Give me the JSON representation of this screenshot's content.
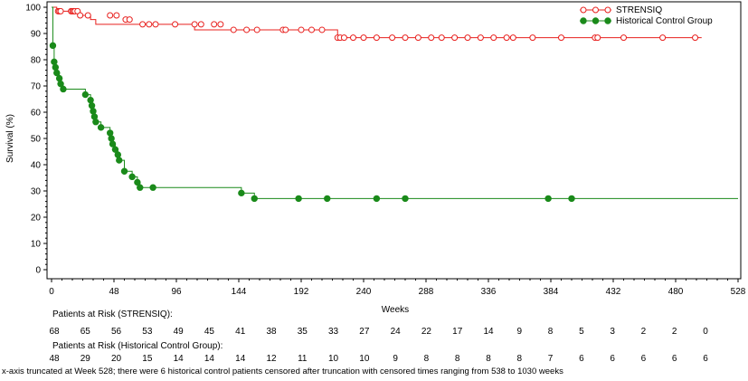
{
  "colors": {
    "strensiq": "#e8201e",
    "control": "#1a8a1a",
    "axis": "#000000"
  },
  "chart_data": {
    "type": "line",
    "xlabel": "Weeks",
    "ylabel": "Survival (%)",
    "xlim": [
      0,
      528
    ],
    "ylim": [
      0,
      100
    ],
    "xticks": [
      0,
      48,
      96,
      144,
      192,
      240,
      288,
      336,
      384,
      432,
      480,
      528
    ],
    "yticks": [
      0,
      10,
      20,
      30,
      40,
      50,
      60,
      70,
      80,
      90,
      100
    ],
    "xtick_labels": [
      "0",
      "48",
      "96",
      "144",
      "192",
      "240",
      "288",
      "336",
      "384",
      "432",
      "480",
      "528"
    ],
    "ytick_labels": [
      "0",
      "10",
      "20",
      "30",
      "40",
      "50",
      "60",
      "70",
      "80",
      "90",
      "100"
    ],
    "grid": false,
    "legend_position": "top-right",
    "series": [
      {
        "name": "STRENSIQ",
        "marker": "open-circle",
        "step": [
          [
            0,
            100
          ],
          [
            4,
            98.5
          ],
          [
            22,
            96.9
          ],
          [
            30,
            95.3
          ],
          [
            34,
            93.5
          ],
          [
            110,
            91.4
          ],
          [
            220,
            88.4
          ],
          [
            500,
            88.4
          ]
        ],
        "censored": [
          [
            5,
            98.5
          ],
          [
            6,
            98.5
          ],
          [
            7,
            98.5
          ],
          [
            15,
            98.5
          ],
          [
            16,
            98.5
          ],
          [
            17,
            98.5
          ],
          [
            18,
            98.5
          ],
          [
            20,
            98.5
          ],
          [
            22,
            96.9
          ],
          [
            28,
            96.9
          ],
          [
            45,
            96.9
          ],
          [
            50,
            96.9
          ],
          [
            57,
            95.3
          ],
          [
            60,
            95.3
          ],
          [
            70,
            93.5
          ],
          [
            75,
            93.5
          ],
          [
            80,
            93.5
          ],
          [
            95,
            93.5
          ],
          [
            110,
            93.5
          ],
          [
            115,
            93.5
          ],
          [
            125,
            93.5
          ],
          [
            130,
            93.5
          ],
          [
            140,
            91.4
          ],
          [
            150,
            91.4
          ],
          [
            158,
            91.4
          ],
          [
            178,
            91.4
          ],
          [
            180,
            91.4
          ],
          [
            192,
            91.4
          ],
          [
            200,
            91.4
          ],
          [
            208,
            91.4
          ],
          [
            220,
            88.4
          ],
          [
            222,
            88.4
          ],
          [
            225,
            88.4
          ],
          [
            232,
            88.4
          ],
          [
            240,
            88.4
          ],
          [
            250,
            88.4
          ],
          [
            262,
            88.4
          ],
          [
            272,
            88.4
          ],
          [
            282,
            88.4
          ],
          [
            292,
            88.4
          ],
          [
            300,
            88.4
          ],
          [
            310,
            88.4
          ],
          [
            320,
            88.4
          ],
          [
            330,
            88.4
          ],
          [
            340,
            88.4
          ],
          [
            350,
            88.4
          ],
          [
            355,
            88.4
          ],
          [
            370,
            88.4
          ],
          [
            392,
            88.4
          ],
          [
            418,
            88.4
          ],
          [
            420,
            88.4
          ],
          [
            440,
            88.4
          ],
          [
            470,
            88.4
          ],
          [
            495,
            88.4
          ]
        ],
        "risk_counts": [
          68,
          65,
          56,
          53,
          49,
          45,
          41,
          38,
          35,
          33,
          27,
          24,
          22,
          17,
          14,
          9,
          8,
          5,
          3,
          2,
          2,
          0
        ]
      },
      {
        "name": "Historical Control Group",
        "marker": "filled-circle",
        "step": [
          [
            0,
            100
          ],
          [
            1,
            85.4
          ],
          [
            2,
            79.2
          ],
          [
            3,
            77.1
          ],
          [
            4,
            75
          ],
          [
            6,
            72.9
          ],
          [
            7,
            70.8
          ],
          [
            9,
            68.8
          ],
          [
            26,
            66.7
          ],
          [
            30,
            64.6
          ],
          [
            31,
            62.5
          ],
          [
            32,
            60.4
          ],
          [
            33,
            58.3
          ],
          [
            34,
            56.3
          ],
          [
            38,
            54.2
          ],
          [
            45,
            52.1
          ],
          [
            46,
            50
          ],
          [
            47,
            47.9
          ],
          [
            49,
            45.8
          ],
          [
            51,
            43.8
          ],
          [
            52,
            41.7
          ],
          [
            56,
            37.5
          ],
          [
            62,
            35.4
          ],
          [
            66,
            33.3
          ],
          [
            68,
            31.3
          ],
          [
            146,
            29.2
          ],
          [
            156,
            27.1
          ],
          [
            528,
            27.1
          ]
        ],
        "events": [
          [
            1,
            85.4
          ],
          [
            2,
            79.2
          ],
          [
            3,
            77.1
          ],
          [
            4,
            75
          ],
          [
            6,
            72.9
          ],
          [
            7,
            70.8
          ],
          [
            9,
            68.8
          ],
          [
            26,
            66.7
          ],
          [
            30,
            64.6
          ],
          [
            31,
            62.5
          ],
          [
            32,
            60.4
          ],
          [
            33,
            58.3
          ],
          [
            34,
            56.3
          ],
          [
            38,
            54.2
          ],
          [
            45,
            52.1
          ],
          [
            46,
            50
          ],
          [
            47,
            47.9
          ],
          [
            49,
            45.8
          ],
          [
            51,
            43.8
          ],
          [
            52,
            41.7
          ],
          [
            56,
            37.5
          ],
          [
            62,
            35.4
          ],
          [
            66,
            33.3
          ],
          [
            68,
            31.3
          ],
          [
            78,
            31.3
          ],
          [
            146,
            29.2
          ],
          [
            156,
            27.1
          ],
          [
            190,
            27.1
          ],
          [
            212,
            27.1
          ],
          [
            250,
            27.1
          ],
          [
            272,
            27.1
          ],
          [
            382,
            27.1
          ],
          [
            400,
            27.1
          ]
        ],
        "risk_counts": [
          48,
          29,
          20,
          15,
          14,
          14,
          14,
          12,
          11,
          10,
          10,
          9,
          8,
          8,
          8,
          8,
          7,
          6,
          6,
          6,
          6,
          6
        ]
      }
    ],
    "risk_times": [
      0,
      24,
      48,
      72,
      96,
      120,
      144,
      168,
      192,
      216,
      240,
      264,
      288,
      312,
      336,
      360,
      384,
      408,
      432,
      456,
      480,
      504
    ]
  },
  "risk_table": {
    "strensiq_title": "Patients at Risk (STRENSIQ):",
    "control_title": "Patients at Risk (Historical Control Group):"
  },
  "footnote": "x-axis truncated at Week 528; there were 6 historical control patients censored after truncation with censored times ranging from 538 to 1030 weeks"
}
